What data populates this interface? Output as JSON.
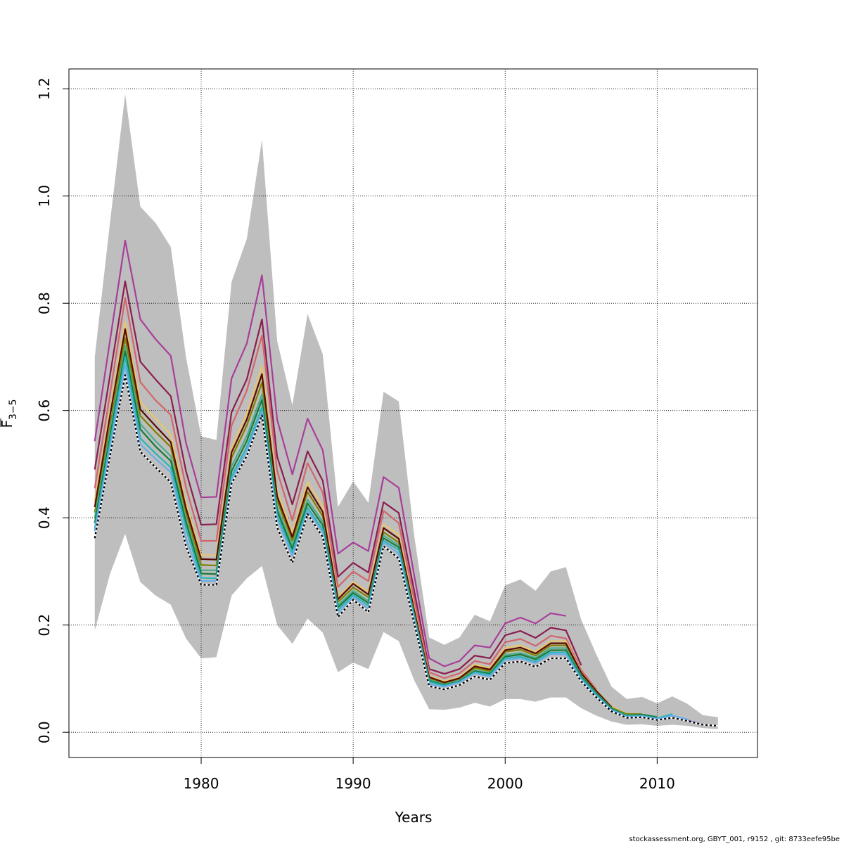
{
  "chart_data": {
    "type": "line",
    "title": "",
    "xlabel": "Years",
    "ylabel_main": "F",
    "ylabel_sub": "3−5",
    "xlim": [
      1971.3,
      2016.6
    ],
    "ylim": [
      -0.047,
      1.237
    ],
    "x_ticks": [
      1980,
      1990,
      2000,
      2010
    ],
    "y_ticks": [
      0.0,
      0.2,
      0.4,
      0.6,
      0.8,
      1.0,
      1.2
    ],
    "y_tick_labels": [
      "0.0",
      "0.2",
      "0.4",
      "0.6",
      "0.8",
      "1.0",
      "1.2"
    ],
    "grid": true,
    "band_color": "#bebebe",
    "band": {
      "x": [
        1973,
        1974,
        1975,
        1976,
        1977,
        1978,
        1979,
        1980,
        1981,
        1982,
        1983,
        1984,
        1985,
        1986,
        1987,
        1988,
        1989,
        1990,
        1991,
        1992,
        1993,
        1994,
        1995,
        1996,
        1997,
        1998,
        1999,
        2000,
        2001,
        2002,
        2003,
        2004,
        2005,
        2006,
        2007,
        2008,
        2009,
        2010,
        2011,
        2012,
        2013,
        2014
      ],
      "upper": [
        0.7,
        0.95,
        1.19,
        0.98,
        0.95,
        0.905,
        0.7,
        0.552,
        0.545,
        0.84,
        0.92,
        1.105,
        0.73,
        0.61,
        0.78,
        0.705,
        0.42,
        0.468,
        0.428,
        0.635,
        0.617,
        0.37,
        0.177,
        0.163,
        0.177,
        0.219,
        0.207,
        0.274,
        0.285,
        0.264,
        0.3,
        0.308,
        0.21,
        0.145,
        0.085,
        0.062,
        0.066,
        0.054,
        0.067,
        0.053,
        0.032,
        0.028
      ],
      "lower": [
        0.19,
        0.295,
        0.37,
        0.28,
        0.255,
        0.238,
        0.175,
        0.138,
        0.14,
        0.255,
        0.287,
        0.31,
        0.2,
        0.165,
        0.212,
        0.186,
        0.112,
        0.13,
        0.118,
        0.187,
        0.17,
        0.098,
        0.043,
        0.042,
        0.046,
        0.055,
        0.048,
        0.062,
        0.062,
        0.057,
        0.065,
        0.065,
        0.045,
        0.031,
        0.02,
        0.014,
        0.015,
        0.012,
        0.014,
        0.012,
        0.008,
        0.006
      ]
    },
    "series": [
      {
        "color": "#a83e9b",
        "x": [
          1973,
          1974,
          1975,
          1976,
          1977,
          1978,
          1979,
          1980,
          1981,
          1982,
          1983,
          1984,
          1985,
          1986,
          1987,
          1988,
          1989,
          1990,
          1991,
          1992,
          1993,
          1994,
          1995,
          1996,
          1997,
          1998,
          1999,
          2000,
          2001,
          2002,
          2003,
          2004
        ],
        "values": [
          0.543,
          0.73,
          0.917,
          0.77,
          0.733,
          0.702,
          0.54,
          0.438,
          0.439,
          0.66,
          0.725,
          0.852,
          0.583,
          0.481,
          0.585,
          0.526,
          0.333,
          0.354,
          0.338,
          0.476,
          0.456,
          0.295,
          0.138,
          0.123,
          0.133,
          0.162,
          0.158,
          0.203,
          0.214,
          0.203,
          0.222,
          0.217
        ]
      },
      {
        "color": "#8b1e50",
        "x": [
          1973,
          1974,
          1975,
          1976,
          1977,
          1978,
          1979,
          1980,
          1981,
          1982,
          1983,
          1984,
          1985,
          1986,
          1987,
          1988,
          1989,
          1990,
          1991,
          1992,
          1993,
          1994,
          1995,
          1996,
          1997,
          1998,
          1999,
          2000,
          2001,
          2002,
          2003,
          2004,
          2005
        ],
        "values": [
          0.49,
          0.665,
          0.841,
          0.691,
          0.658,
          0.627,
          0.487,
          0.387,
          0.388,
          0.597,
          0.658,
          0.77,
          0.514,
          0.425,
          0.524,
          0.469,
          0.29,
          0.316,
          0.298,
          0.429,
          0.409,
          0.266,
          0.118,
          0.109,
          0.118,
          0.143,
          0.138,
          0.181,
          0.189,
          0.176,
          0.195,
          0.19,
          0.125
        ]
      },
      {
        "color": "#d2656b",
        "x": [
          1973,
          1974,
          1975,
          1976,
          1977,
          1978,
          1979,
          1980,
          1981,
          1982,
          1983,
          1984,
          1985,
          1986,
          1987,
          1988,
          1989,
          1990,
          1991,
          1992,
          1993,
          1994,
          1995,
          1996,
          1997,
          1998,
          1999,
          2000,
          2001,
          2002,
          2003,
          2004,
          2005,
          2006
        ],
        "values": [
          0.455,
          0.63,
          0.81,
          0.653,
          0.619,
          0.592,
          0.457,
          0.357,
          0.357,
          0.572,
          0.637,
          0.74,
          0.487,
          0.395,
          0.502,
          0.447,
          0.271,
          0.3,
          0.282,
          0.413,
          0.39,
          0.25,
          0.112,
          0.101,
          0.11,
          0.133,
          0.127,
          0.168,
          0.174,
          0.161,
          0.18,
          0.175,
          0.116,
          0.08
        ]
      },
      {
        "color": "#e8c66a",
        "x": [
          1973,
          1974,
          1975,
          1976,
          1977,
          1978,
          1979,
          1980,
          1981,
          1982,
          1983,
          1984,
          1985,
          1986,
          1987,
          1988,
          1989,
          1990,
          1991,
          1992,
          1993,
          1994,
          1995,
          1996,
          1997,
          1998,
          1999,
          2000,
          2001,
          2002,
          2003,
          2004,
          2005,
          2006,
          2007,
          2008
        ],
        "values": [
          0.43,
          0.6,
          0.765,
          0.615,
          0.585,
          0.555,
          0.428,
          0.33,
          0.33,
          0.53,
          0.595,
          0.683,
          0.45,
          0.372,
          0.467,
          0.42,
          0.253,
          0.28,
          0.262,
          0.388,
          0.368,
          0.235,
          0.105,
          0.095,
          0.103,
          0.126,
          0.12,
          0.157,
          0.162,
          0.15,
          0.17,
          0.17,
          0.112,
          0.078,
          0.048,
          0.035
        ]
      },
      {
        "color": "#808000",
        "x": [
          1973,
          1974,
          1975,
          1976,
          1977,
          1978,
          1979,
          1980,
          1981,
          1982,
          1983,
          1984,
          1985,
          1986,
          1987,
          1988,
          1989,
          1990,
          1991,
          1992,
          1993,
          1994,
          1995,
          1996,
          1997,
          1998,
          1999,
          2000,
          2001,
          2002,
          2003,
          2004,
          2005,
          2006,
          2007,
          2008,
          2009
        ],
        "values": [
          0.41,
          0.57,
          0.735,
          0.59,
          0.56,
          0.532,
          0.41,
          0.312,
          0.311,
          0.512,
          0.572,
          0.652,
          0.432,
          0.357,
          0.448,
          0.403,
          0.243,
          0.27,
          0.252,
          0.373,
          0.354,
          0.225,
          0.1,
          0.091,
          0.099,
          0.12,
          0.114,
          0.15,
          0.154,
          0.143,
          0.162,
          0.162,
          0.108,
          0.075,
          0.046,
          0.034,
          0.034
        ]
      },
      {
        "color": "#5a0a00",
        "x": [
          1973,
          1974,
          1975,
          1976,
          1977,
          1978,
          1979,
          1980,
          1981,
          1982,
          1983,
          1984,
          1985,
          1986,
          1987,
          1988,
          1989,
          1990,
          1991,
          1992,
          1993,
          1994,
          1995,
          1996,
          1997,
          1998,
          1999,
          2000,
          2001,
          2002,
          2003,
          2004,
          2005,
          2006,
          2007
        ],
        "values": [
          0.42,
          0.59,
          0.752,
          0.602,
          0.571,
          0.541,
          0.418,
          0.323,
          0.322,
          0.522,
          0.583,
          0.668,
          0.44,
          0.364,
          0.457,
          0.411,
          0.248,
          0.277,
          0.257,
          0.381,
          0.361,
          0.23,
          0.103,
          0.093,
          0.101,
          0.123,
          0.117,
          0.153,
          0.158,
          0.147,
          0.166,
          0.166,
          0.111,
          0.077,
          0.047
        ]
      },
      {
        "color": "#4aae8f",
        "x": [
          1973,
          1974,
          1975,
          1976,
          1977,
          1978,
          1979,
          1980,
          1981,
          1982,
          1983,
          1984,
          1985,
          1986,
          1987,
          1988,
          1989,
          1990,
          1991,
          1992,
          1993,
          1994,
          1995,
          1996,
          1997,
          1998,
          1999,
          2000,
          2001,
          2002,
          2003,
          2004,
          2005,
          2006,
          2007,
          2008,
          2009,
          2010
        ],
        "values": [
          0.4,
          0.56,
          0.72,
          0.575,
          0.543,
          0.515,
          0.398,
          0.302,
          0.302,
          0.496,
          0.552,
          0.63,
          0.42,
          0.348,
          0.434,
          0.392,
          0.237,
          0.264,
          0.245,
          0.367,
          0.349,
          0.222,
          0.098,
          0.089,
          0.097,
          0.116,
          0.111,
          0.144,
          0.148,
          0.139,
          0.157,
          0.157,
          0.106,
          0.073,
          0.045,
          0.032,
          0.033,
          0.029
        ]
      },
      {
        "color": "#1a7a3a",
        "x": [
          1973,
          1974,
          1975,
          1976,
          1977,
          1978,
          1979,
          1980,
          1981,
          1982,
          1983,
          1984,
          1985,
          1986,
          1987,
          1988,
          1989,
          1990,
          1991,
          1992,
          1993,
          1994,
          1995,
          1996,
          1997,
          1998,
          1999,
          2000,
          2001,
          2002,
          2003,
          2004,
          2005,
          2006,
          2007,
          2008,
          2009,
          2010
        ],
        "values": [
          0.39,
          0.55,
          0.71,
          0.565,
          0.533,
          0.506,
          0.392,
          0.296,
          0.295,
          0.487,
          0.543,
          0.62,
          0.413,
          0.342,
          0.427,
          0.386,
          0.233,
          0.26,
          0.241,
          0.362,
          0.345,
          0.219,
          0.096,
          0.088,
          0.095,
          0.114,
          0.109,
          0.141,
          0.145,
          0.136,
          0.153,
          0.153,
          0.104,
          0.072,
          0.044,
          0.031,
          0.033,
          0.028
        ]
      },
      {
        "color": "#2ab5b5",
        "x": [
          1973,
          1974,
          1975,
          1976,
          1977,
          1978,
          1979,
          1980,
          1981,
          1982,
          1983,
          1984,
          1985,
          1986,
          1987,
          1988,
          1989,
          1990,
          1991,
          1992,
          1993,
          1994,
          1995,
          1996,
          1997,
          1998,
          1999,
          2000,
          2001,
          2002,
          2003,
          2004,
          2005,
          2006,
          2007,
          2008,
          2009,
          2010,
          2011
        ],
        "values": [
          0.38,
          0.54,
          0.7,
          0.548,
          0.52,
          0.494,
          0.38,
          0.288,
          0.287,
          0.477,
          0.532,
          0.606,
          0.404,
          0.335,
          0.419,
          0.378,
          0.228,
          0.256,
          0.236,
          0.357,
          0.34,
          0.216,
          0.094,
          0.087,
          0.094,
          0.112,
          0.107,
          0.138,
          0.141,
          0.132,
          0.149,
          0.149,
          0.101,
          0.07,
          0.042,
          0.03,
          0.031,
          0.026,
          0.034
        ]
      },
      {
        "color": "#6aaee8",
        "x": [
          1973,
          1974,
          1975,
          1976,
          1977,
          1978,
          1979,
          1980,
          1981,
          1982,
          1983,
          1984,
          1985,
          1986,
          1987,
          1988,
          1989,
          1990,
          1991,
          1992,
          1993,
          1994,
          1995,
          1996,
          1997,
          1998,
          1999,
          2000,
          2001,
          2002,
          2003,
          2004,
          2005,
          2006,
          2007,
          2008,
          2009,
          2010,
          2011,
          2012
        ],
        "values": [
          0.375,
          0.53,
          0.685,
          0.537,
          0.51,
          0.485,
          0.362,
          0.282,
          0.282,
          0.471,
          0.524,
          0.598,
          0.398,
          0.329,
          0.413,
          0.373,
          0.222,
          0.253,
          0.23,
          0.354,
          0.333,
          0.211,
          0.09,
          0.085,
          0.093,
          0.11,
          0.104,
          0.135,
          0.138,
          0.129,
          0.146,
          0.145,
          0.098,
          0.067,
          0.041,
          0.029,
          0.03,
          0.025,
          0.031,
          0.024
        ]
      },
      {
        "color": "#1f1f9a",
        "x": [
          2012,
          2013
        ],
        "values": [
          0.022,
          0.014
        ]
      },
      {
        "color": "#000000",
        "dashed": true,
        "x": [
          1973,
          1974,
          1975,
          1976,
          1977,
          1978,
          1979,
          1980,
          1981,
          1982,
          1983,
          1984,
          1985,
          1986,
          1987,
          1988,
          1989,
          1990,
          1991,
          1992,
          1993,
          1994,
          1995,
          1996,
          1997,
          1998,
          1999,
          2000,
          2001,
          2002,
          2003,
          2004,
          2005,
          2006,
          2007,
          2008,
          2009,
          2010,
          2011,
          2012,
          2013,
          2014
        ],
        "values": [
          0.362,
          0.515,
          0.666,
          0.523,
          0.494,
          0.466,
          0.347,
          0.275,
          0.275,
          0.464,
          0.515,
          0.591,
          0.382,
          0.316,
          0.407,
          0.364,
          0.215,
          0.247,
          0.224,
          0.347,
          0.324,
          0.205,
          0.086,
          0.08,
          0.088,
          0.104,
          0.098,
          0.129,
          0.132,
          0.122,
          0.138,
          0.138,
          0.095,
          0.065,
          0.039,
          0.027,
          0.028,
          0.023,
          0.027,
          0.021,
          0.014,
          0.012
        ]
      }
    ]
  },
  "footer": "stockassessment.org, GBYT_001, r9152 , git: 8733eefe95be"
}
